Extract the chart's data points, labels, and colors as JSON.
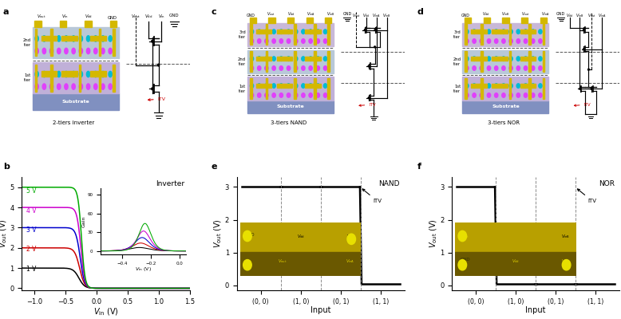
{
  "panel_labels": [
    "a",
    "b",
    "c",
    "d",
    "e",
    "f"
  ],
  "inverter_title": "2-tiers inverter",
  "nand_title": "3-tiers NAND",
  "nor_title": "3-tiers NOR",
  "inverter_plot_title": "Inverter",
  "nand_plot_title": "NAND",
  "nor_plot_title": "NOR",
  "inverter_xlabel": "$V_{\\rm in}$ (V)",
  "inverter_ylabel": "$V_{\\rm out}$ (V)",
  "inverter_xlim": [
    -1.2,
    1.5
  ],
  "inverter_ylim": [
    -0.1,
    5.5
  ],
  "inverter_xticks": [
    -1.0,
    -0.5,
    0.0,
    0.5,
    1.0,
    1.5
  ],
  "inverter_yticks": [
    0,
    1,
    2,
    3,
    4,
    5
  ],
  "gain_xlabel": "$V_{\\rm in}$ (V)",
  "gain_ylabel": "Gain",
  "gain_xlim": [
    -0.55,
    0.05
  ],
  "gain_ylim": [
    -5,
    100
  ],
  "gain_yticks": [
    0,
    30,
    60,
    90
  ],
  "gain_xticks": [
    -0.4,
    -0.2,
    0.0
  ],
  "inverter_vdd_values": [
    1,
    2,
    3,
    4,
    5
  ],
  "inverter_colors": [
    "#000000",
    "#cc0000",
    "#0000cc",
    "#cc00cc",
    "#00aa00"
  ],
  "nand_xlabel": "Input",
  "nand_ylabel": "$V_{\\rm out}$ (V)",
  "nand_ylim": [
    -0.15,
    3.3
  ],
  "nand_yticks": [
    0,
    1,
    2,
    3
  ],
  "nand_inputs": [
    "(0, 0)",
    "(1, 0)",
    "(0, 1)",
    "(1, 1)"
  ],
  "nand_output": [
    3.0,
    3.0,
    3.0,
    0.05
  ],
  "nor_xlabel": "Input",
  "nor_ylabel": "$V_{\\rm out}$ (V)",
  "nor_ylim": [
    -0.15,
    3.3
  ],
  "nor_yticks": [
    0,
    1,
    2,
    3
  ],
  "nor_inputs": [
    "(0, 0)",
    "(1, 0)",
    "(0, 1)",
    "(1, 1)"
  ],
  "nor_output": [
    3.0,
    0.05,
    0.05,
    0.05
  ],
  "substrate_color": "#8090c0",
  "tier1_bg": "#c0b0d8",
  "tier2_bg": "#b8c8d8",
  "tier3_bg": "#c8b8d8",
  "tier_p_color": "#e040fb",
  "tier_n_color": "#00bcd4",
  "electrode_color": "#d4b800",
  "itv_arrow_color": "#cc0000",
  "chip_top_color": "#b8a000",
  "chip_bot_color": "#6a5800"
}
